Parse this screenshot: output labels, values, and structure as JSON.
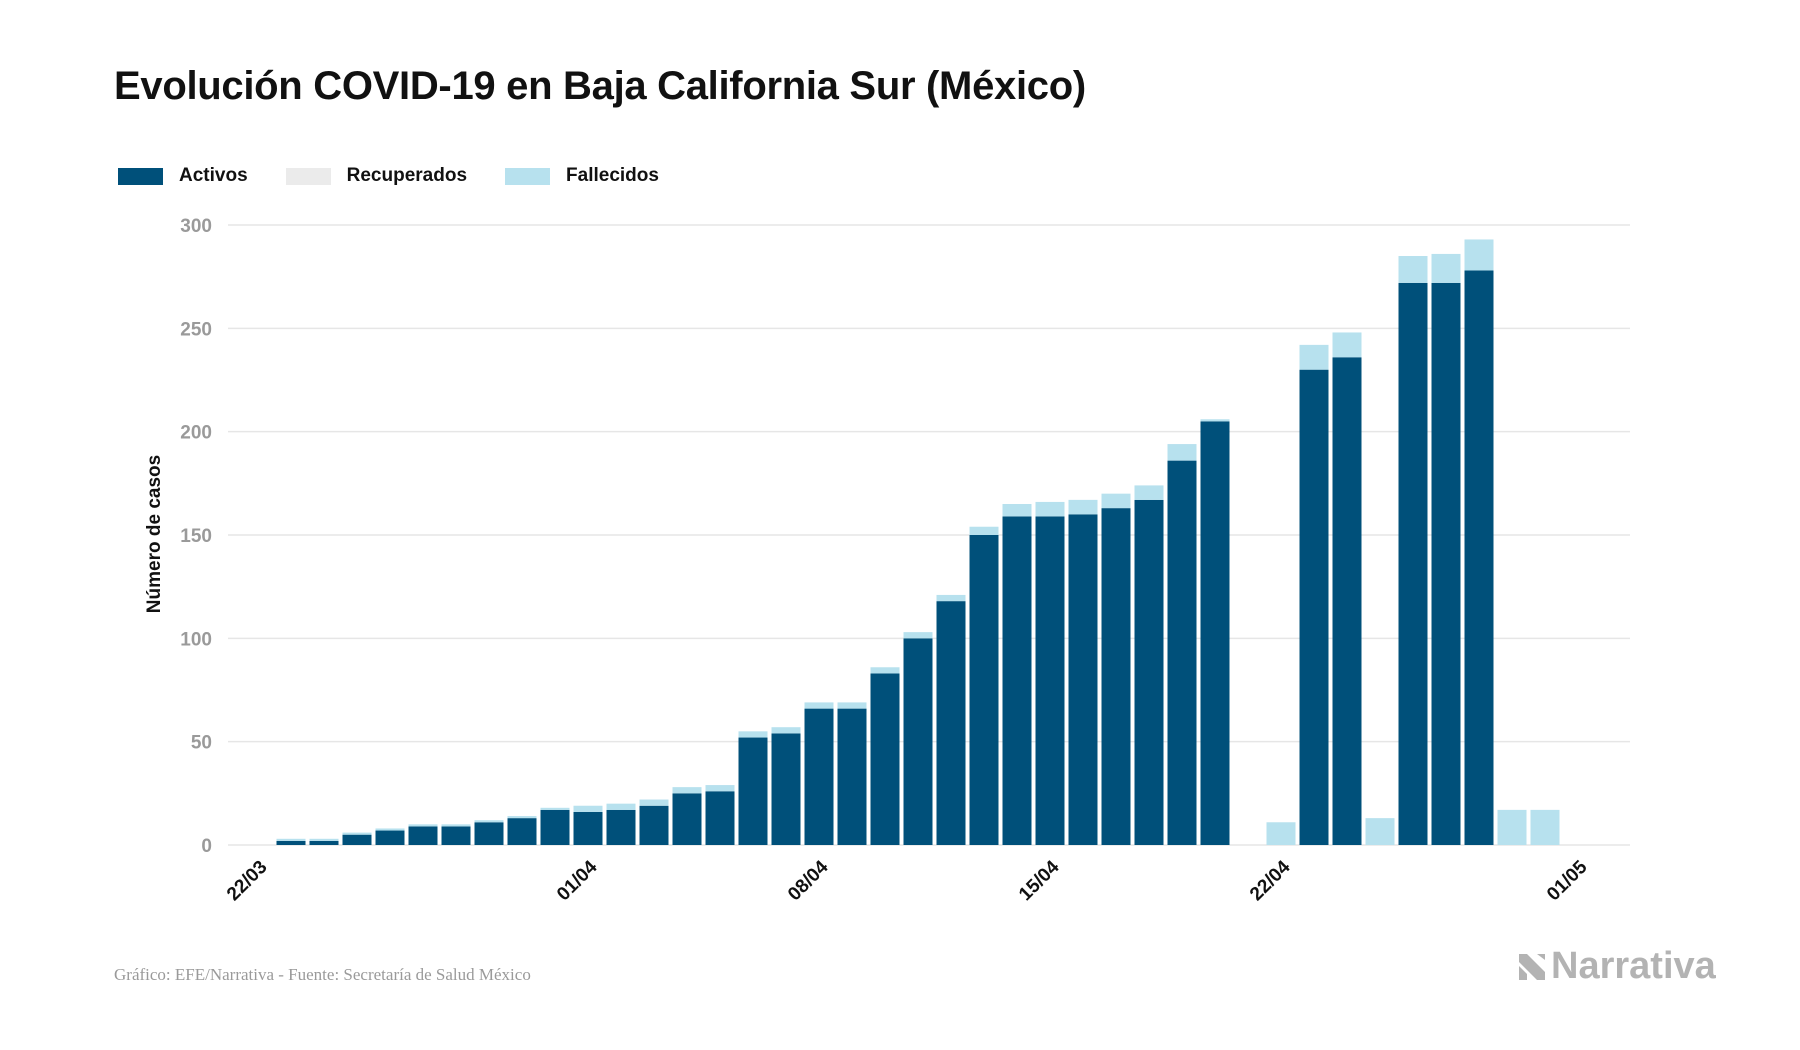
{
  "title": "Evolución COVID-19 en Baja California Sur (México)",
  "source": "Gráfico: EFE/Narrativa - Fuente: Secretaría de Salud México",
  "brand": "Narrativa",
  "colors": {
    "activos": "#00507a",
    "recuperados": "#ebebeb",
    "fallecidos": "#b7e1ee",
    "grid": "#e6e6e6"
  },
  "legend": [
    {
      "label": "Activos",
      "color": "#00507a"
    },
    {
      "label": "Recuperados",
      "color": "#ebebeb"
    },
    {
      "label": "Fallecidos",
      "color": "#b7e1ee"
    }
  ],
  "chart_data": {
    "type": "bar",
    "stacked": true,
    "ylabel": "Número de casos",
    "ylim": [
      0,
      300
    ],
    "yticks": [
      0,
      50,
      100,
      150,
      200,
      250,
      300
    ],
    "grid": true,
    "legend_position": "top-left",
    "xticks": [
      {
        "day": 0,
        "label": "22/03"
      },
      {
        "day": 10,
        "label": "01/04"
      },
      {
        "day": 17,
        "label": "08/04"
      },
      {
        "day": 24,
        "label": "15/04"
      },
      {
        "day": 31,
        "label": "22/04"
      },
      {
        "day": 40,
        "label": "01/05"
      }
    ],
    "x": [
      "23/03",
      "24/03",
      "25/03",
      "26/03",
      "27/03",
      "28/03",
      "29/03",
      "30/03",
      "31/03",
      "01/04",
      "02/04",
      "03/04",
      "04/04",
      "05/04",
      "06/04",
      "07/04",
      "08/04",
      "09/04",
      "10/04",
      "11/04",
      "12/04",
      "13/04",
      "14/04",
      "15/04",
      "16/04",
      "17/04",
      "18/04",
      "19/04",
      "20/04",
      "21/04",
      "22/04",
      "23/04",
      "24/04",
      "25/04",
      "26/04",
      "27/04",
      "28/04",
      "29/04",
      "30/04"
    ],
    "series": [
      {
        "name": "Activos",
        "values": [
          2,
          2,
          5,
          7,
          9,
          9,
          11,
          13,
          17,
          16,
          17,
          19,
          25,
          26,
          52,
          54,
          66,
          66,
          83,
          100,
          118,
          150,
          159,
          159,
          160,
          163,
          167,
          186,
          205,
          0,
          0,
          230,
          236,
          0,
          272,
          272,
          278,
          0,
          0
        ]
      },
      {
        "name": "Recuperados",
        "values": [
          0,
          0,
          0,
          0,
          0,
          0,
          0,
          0,
          0,
          0,
          0,
          0,
          0,
          0,
          0,
          0,
          0,
          0,
          0,
          0,
          0,
          0,
          0,
          0,
          0,
          0,
          0,
          0,
          0,
          0,
          0,
          0,
          0,
          0,
          0,
          0,
          0,
          0,
          0
        ]
      },
      {
        "name": "Fallecidos",
        "values": [
          1,
          1,
          1,
          1,
          1,
          1,
          1,
          1,
          1,
          3,
          3,
          3,
          3,
          3,
          3,
          3,
          3,
          3,
          3,
          3,
          3,
          4,
          6,
          7,
          7,
          7,
          7,
          8,
          1,
          0,
          11,
          12,
          12,
          13,
          13,
          14,
          15,
          17,
          17
        ]
      }
    ]
  }
}
